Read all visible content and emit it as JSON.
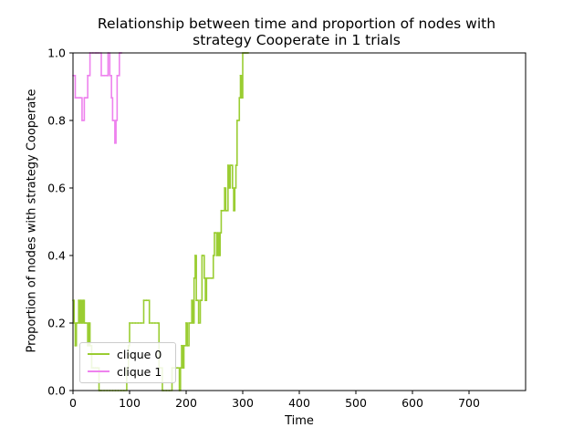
{
  "chart_data": {
    "type": "line",
    "title_line1": "Relationship between time and proportion of nodes with",
    "title_line2": "strategy Cooperate in 1 trials",
    "xlabel": "Time",
    "ylabel": "Proportion of nodes with strategy Cooperate",
    "xlim": [
      0,
      800
    ],
    "ylim": [
      0,
      1.0
    ],
    "xticks": [
      0,
      100,
      200,
      300,
      400,
      500,
      600,
      700
    ],
    "yticks": [
      0.0,
      0.2,
      0.4,
      0.6,
      0.8,
      1.0
    ],
    "xtick_labels": [
      "0",
      "100",
      "200",
      "300",
      "400",
      "500",
      "600",
      "700"
    ],
    "ytick_labels": [
      "0.0",
      "0.2",
      "0.4",
      "0.6",
      "0.8",
      "1.0"
    ],
    "grid": false,
    "legend_position": "lower-left",
    "series": [
      {
        "name": "clique 0",
        "color": "#9acd32",
        "step": true,
        "x": [
          0,
          2,
          4,
          6,
          8,
          10,
          12,
          14,
          16,
          18,
          20,
          22,
          24,
          26,
          28,
          30,
          33,
          36,
          40,
          43,
          46,
          48,
          50,
          55,
          60,
          65,
          70,
          75,
          80,
          85,
          90,
          95,
          98,
          100,
          105,
          110,
          115,
          120,
          125,
          130,
          135,
          140,
          145,
          150,
          152,
          155,
          158,
          160,
          165,
          170,
          175,
          180,
          185,
          188,
          190,
          192,
          194,
          196,
          198,
          200,
          202,
          205,
          208,
          210,
          212,
          214,
          216,
          218,
          220,
          222,
          225,
          228,
          230,
          232,
          234,
          236,
          238,
          240,
          245,
          248,
          250,
          252,
          254,
          256,
          258,
          260,
          262,
          264,
          266,
          268,
          270,
          272,
          274,
          276,
          278,
          280,
          282,
          284,
          286,
          288,
          290,
          292,
          294,
          296,
          298,
          300,
          302,
          304,
          306,
          308,
          310
        ],
        "values": [
          0.267,
          0.2,
          0.133,
          0.2,
          0.2,
          0.267,
          0.2,
          0.267,
          0.2,
          0.267,
          0.2,
          0.2,
          0.2,
          0.133,
          0.2,
          0.133,
          0.067,
          0.067,
          0.067,
          0.067,
          0.0,
          0.0,
          0.0,
          0.0,
          0.0,
          0.0,
          0.0,
          0.0,
          0.0,
          0.0,
          0.0,
          0.067,
          0.133,
          0.2,
          0.2,
          0.2,
          0.2,
          0.2,
          0.267,
          0.267,
          0.2,
          0.2,
          0.2,
          0.2,
          0.067,
          0.067,
          0.0,
          0.0,
          0.0,
          0.0,
          0.067,
          0.067,
          0.067,
          0.0,
          0.067,
          0.133,
          0.067,
          0.133,
          0.133,
          0.2,
          0.133,
          0.2,
          0.2,
          0.267,
          0.2,
          0.333,
          0.4,
          0.267,
          0.267,
          0.2,
          0.267,
          0.4,
          0.4,
          0.333,
          0.267,
          0.333,
          0.333,
          0.333,
          0.333,
          0.4,
          0.467,
          0.467,
          0.4,
          0.467,
          0.4,
          0.467,
          0.533,
          0.533,
          0.533,
          0.6,
          0.533,
          0.533,
          0.667,
          0.6,
          0.667,
          0.667,
          0.6,
          0.533,
          0.6,
          0.667,
          0.8,
          0.8,
          0.867,
          0.933,
          0.867,
          1.0,
          1.0,
          1.0,
          1.0,
          1.0,
          1.0
        ]
      },
      {
        "name": "clique 1",
        "color": "#ee82ee",
        "step": true,
        "x": [
          0,
          2,
          4,
          6,
          8,
          10,
          12,
          14,
          16,
          18,
          20,
          22,
          24,
          26,
          28,
          30,
          35,
          40,
          42,
          45,
          50,
          55,
          60,
          62,
          65,
          68,
          70,
          72,
          74,
          76,
          78,
          80,
          82,
          84,
          86
        ],
        "values": [
          0.933,
          0.933,
          0.867,
          0.867,
          0.867,
          0.867,
          0.867,
          0.867,
          0.8,
          0.8,
          0.867,
          0.867,
          0.867,
          0.933,
          0.933,
          1.0,
          1.0,
          1.0,
          1.0,
          1.0,
          0.933,
          0.933,
          0.933,
          1.0,
          0.933,
          0.867,
          0.8,
          0.8,
          0.733,
          0.8,
          0.933,
          0.933,
          1.0,
          1.0,
          1.0
        ]
      }
    ]
  }
}
